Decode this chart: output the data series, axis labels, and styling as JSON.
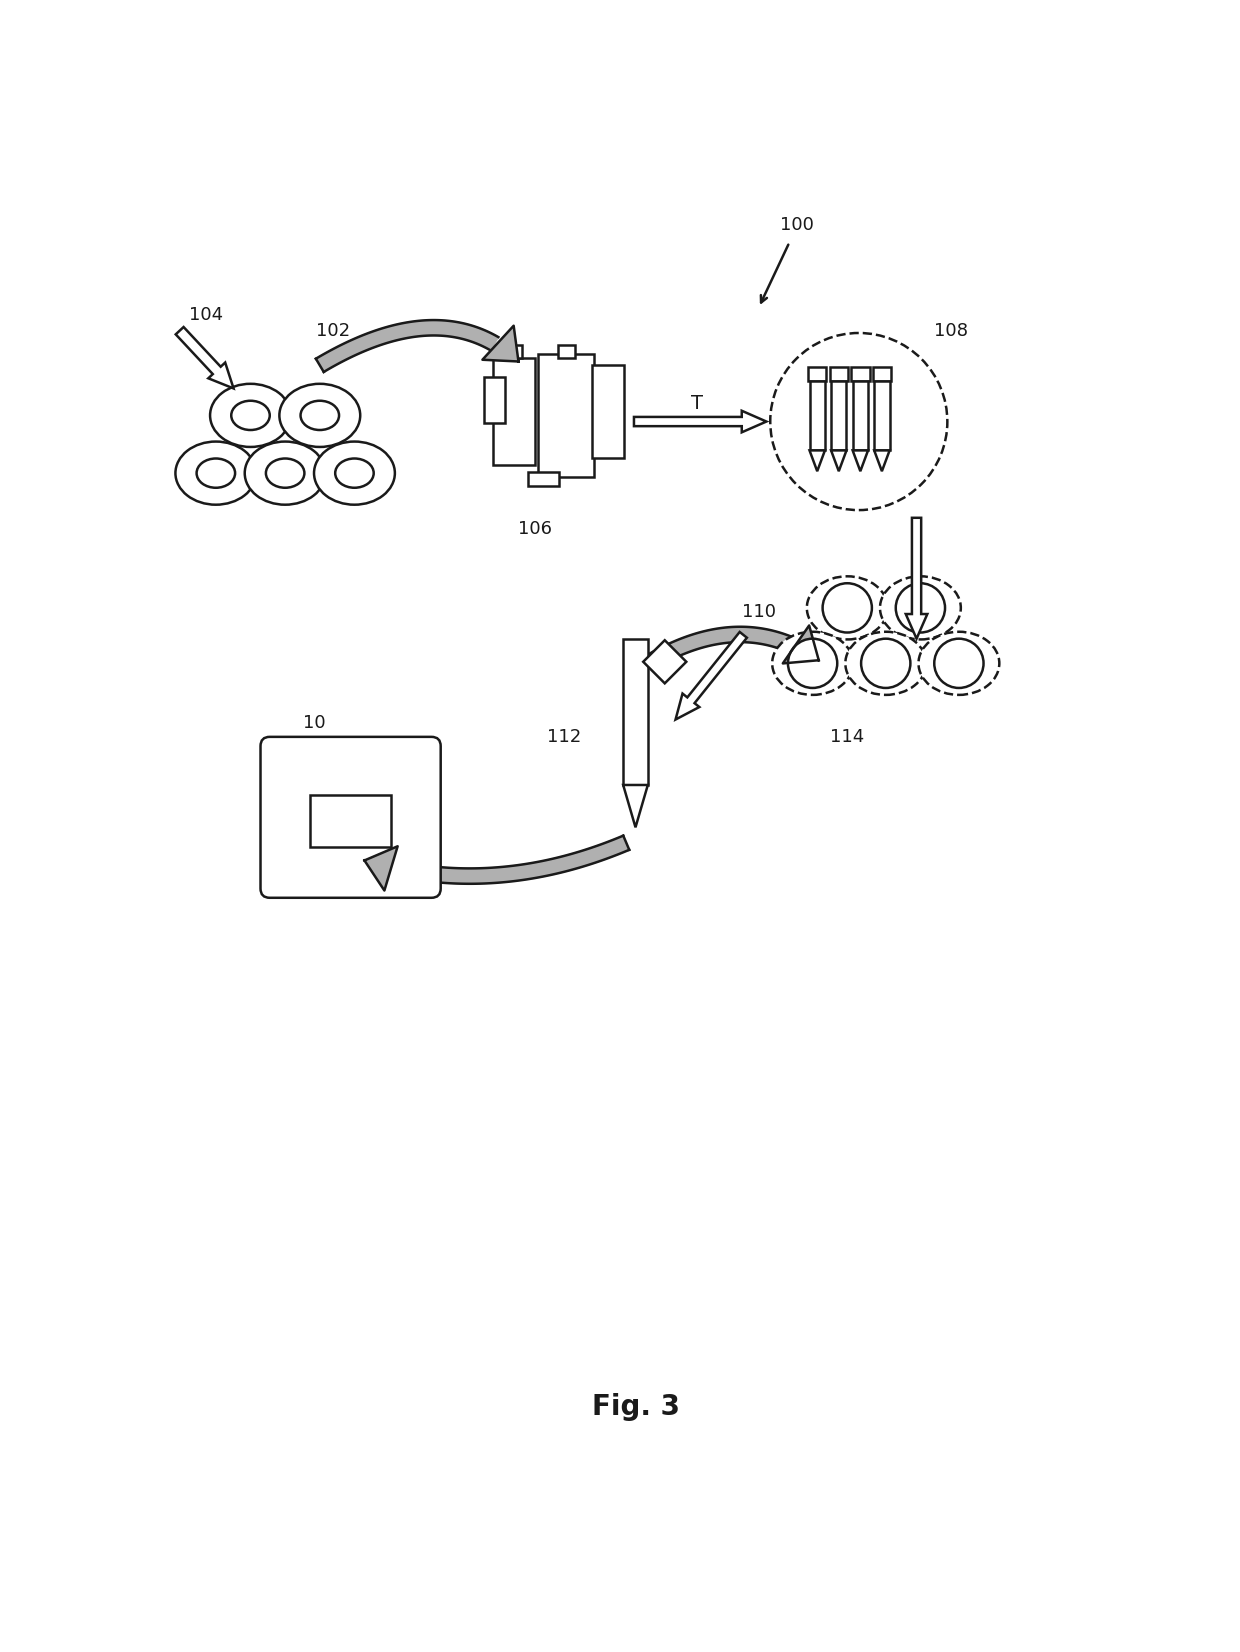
{
  "title": "Fig. 3",
  "bg_color": "#ffffff",
  "line_color": "#1a1a1a",
  "gray_fill": "#b0b0b0",
  "label_100": "100",
  "label_102": "102",
  "label_104": "104",
  "label_106": "106",
  "label_108": "108",
  "label_110": "110",
  "label_112": "112",
  "label_114": "114",
  "label_10": "10",
  "label_T": "T",
  "fig_w": 1240,
  "fig_h": 1652
}
